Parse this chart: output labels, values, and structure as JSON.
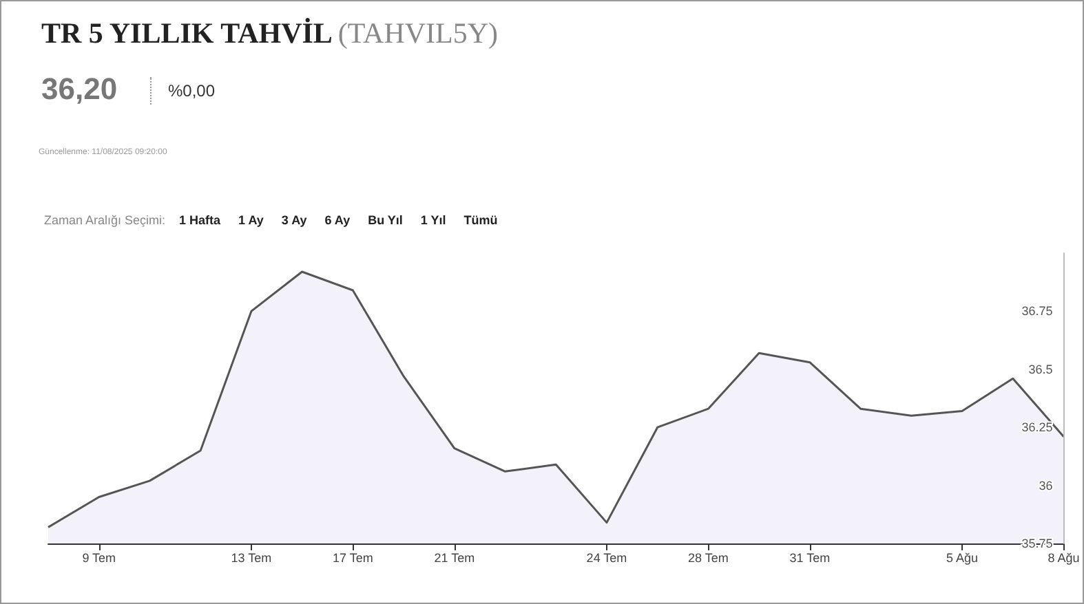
{
  "chart_data": {
    "type": "area",
    "title": "TR 5 YILLIK TAHVİL",
    "subtitle": "(TAHVIL5Y)",
    "annotations": [
      "36,20",
      "%0,00",
      "Güncellenme: 11/08/2025 09:20:00",
      "Zaman Aralığı Seçimi:",
      "1 Hafta",
      "1 Ay",
      "3 Ay",
      "6 Ay",
      "Bu Yıl",
      "1 Yıl",
      "Tümü"
    ],
    "categories": [
      null,
      "9 Tem",
      null,
      null,
      "13 Tem",
      null,
      "17 Tem",
      null,
      "21 Tem",
      null,
      null,
      "24 Tem",
      null,
      "28 Tem",
      null,
      "31 Tem",
      null,
      null,
      "5 Ağu",
      null,
      "8 Ağu"
    ],
    "series": [
      {
        "color": "#555555",
        "values": [
          35.82,
          35.95,
          36.02,
          36.15,
          36.75,
          36.92,
          36.84,
          36.47,
          36.16,
          36.06,
          36.09,
          35.84,
          36.25,
          36.33,
          36.57,
          36.53,
          36.33,
          36.3,
          36.32,
          36.46,
          36.21
        ]
      }
    ],
    "ylim": [
      35.75,
      37
    ],
    "yticks": [
      35.75,
      36,
      36.25,
      36.5,
      36.75
    ],
    "grid": false,
    "marker": "none",
    "line_style": "solid"
  }
}
